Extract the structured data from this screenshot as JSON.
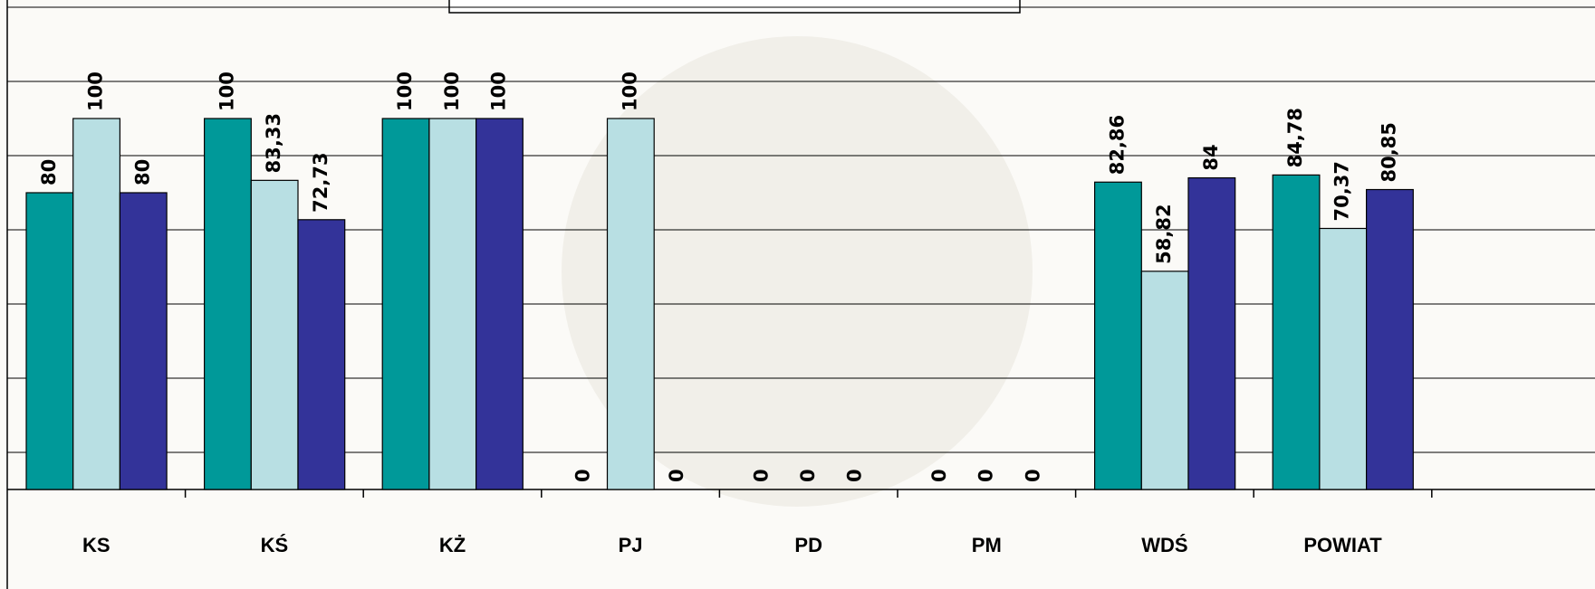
{
  "chart_data": {
    "type": "bar",
    "categories": [
      "KS",
      "KŚ",
      "KŻ",
      "PJ",
      "PD",
      "PM",
      "WDŚ",
      "POWIAT"
    ],
    "series": [
      {
        "color": "#009999",
        "values": [
          80,
          100,
          100,
          0,
          0,
          0,
          82.86,
          84.78
        ],
        "value_labels": [
          "80",
          "100",
          "100",
          "0",
          "0",
          "0",
          "82,86",
          "84,78"
        ]
      },
      {
        "color": "#b8dfe3",
        "values": [
          100,
          83.33,
          100,
          100,
          0,
          0,
          58.82,
          70.37
        ],
        "value_labels": [
          "100",
          "83,33",
          "100",
          "100",
          "0",
          "0",
          "58,82",
          "70,37"
        ]
      },
      {
        "color": "#333399",
        "values": [
          80,
          72.73,
          100,
          0,
          0,
          0,
          84,
          80.85
        ],
        "value_labels": [
          "80",
          "72,73",
          "100",
          "0",
          "0",
          "0",
          "84",
          "80,85"
        ]
      }
    ],
    "ylim": [
      0,
      130
    ],
    "yticks": [
      10,
      30,
      50,
      70,
      90,
      110,
      130
    ],
    "grid": true
  }
}
